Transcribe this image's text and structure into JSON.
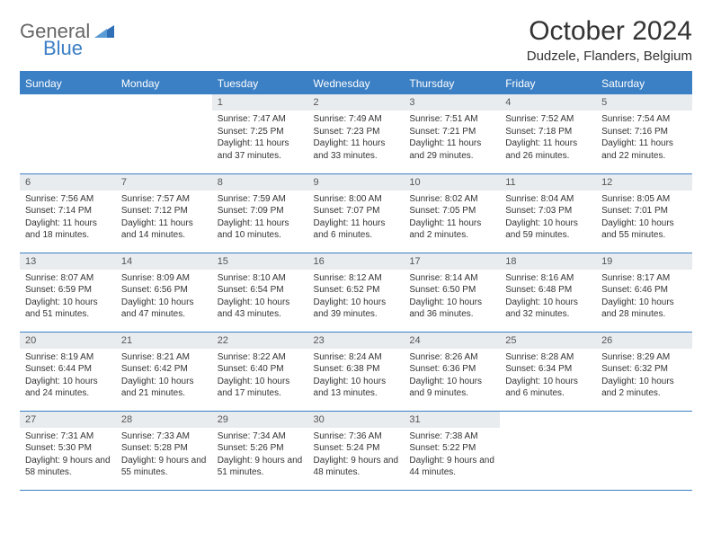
{
  "brand": {
    "line1": "General",
    "line2": "Blue"
  },
  "title": "October 2024",
  "location": "Dudzele, Flanders, Belgium",
  "colors": {
    "accent": "#3b7fc4",
    "header_bg": "#3b7fc4",
    "header_text": "#ffffff",
    "daynum_bg": "#e9ecef",
    "border": "#3b7fc4",
    "page_bg": "#ffffff",
    "text": "#333333"
  },
  "typography": {
    "title_fontsize": 30,
    "location_fontsize": 15,
    "dayheader_fontsize": 12,
    "daynum_fontsize": 11,
    "body_fontsize": 10
  },
  "day_headers": [
    "Sunday",
    "Monday",
    "Tuesday",
    "Wednesday",
    "Thursday",
    "Friday",
    "Saturday"
  ],
  "weeks": [
    [
      {
        "n": "",
        "sun": "",
        "set": "",
        "day": "",
        "empty": true
      },
      {
        "n": "",
        "sun": "",
        "set": "",
        "day": "",
        "empty": true
      },
      {
        "n": "1",
        "sun": "Sunrise: 7:47 AM",
        "set": "Sunset: 7:25 PM",
        "day": "Daylight: 11 hours and 37 minutes."
      },
      {
        "n": "2",
        "sun": "Sunrise: 7:49 AM",
        "set": "Sunset: 7:23 PM",
        "day": "Daylight: 11 hours and 33 minutes."
      },
      {
        "n": "3",
        "sun": "Sunrise: 7:51 AM",
        "set": "Sunset: 7:21 PM",
        "day": "Daylight: 11 hours and 29 minutes."
      },
      {
        "n": "4",
        "sun": "Sunrise: 7:52 AM",
        "set": "Sunset: 7:18 PM",
        "day": "Daylight: 11 hours and 26 minutes."
      },
      {
        "n": "5",
        "sun": "Sunrise: 7:54 AM",
        "set": "Sunset: 7:16 PM",
        "day": "Daylight: 11 hours and 22 minutes."
      }
    ],
    [
      {
        "n": "6",
        "sun": "Sunrise: 7:56 AM",
        "set": "Sunset: 7:14 PM",
        "day": "Daylight: 11 hours and 18 minutes."
      },
      {
        "n": "7",
        "sun": "Sunrise: 7:57 AM",
        "set": "Sunset: 7:12 PM",
        "day": "Daylight: 11 hours and 14 minutes."
      },
      {
        "n": "8",
        "sun": "Sunrise: 7:59 AM",
        "set": "Sunset: 7:09 PM",
        "day": "Daylight: 11 hours and 10 minutes."
      },
      {
        "n": "9",
        "sun": "Sunrise: 8:00 AM",
        "set": "Sunset: 7:07 PM",
        "day": "Daylight: 11 hours and 6 minutes."
      },
      {
        "n": "10",
        "sun": "Sunrise: 8:02 AM",
        "set": "Sunset: 7:05 PM",
        "day": "Daylight: 11 hours and 2 minutes."
      },
      {
        "n": "11",
        "sun": "Sunrise: 8:04 AM",
        "set": "Sunset: 7:03 PM",
        "day": "Daylight: 10 hours and 59 minutes."
      },
      {
        "n": "12",
        "sun": "Sunrise: 8:05 AM",
        "set": "Sunset: 7:01 PM",
        "day": "Daylight: 10 hours and 55 minutes."
      }
    ],
    [
      {
        "n": "13",
        "sun": "Sunrise: 8:07 AM",
        "set": "Sunset: 6:59 PM",
        "day": "Daylight: 10 hours and 51 minutes."
      },
      {
        "n": "14",
        "sun": "Sunrise: 8:09 AM",
        "set": "Sunset: 6:56 PM",
        "day": "Daylight: 10 hours and 47 minutes."
      },
      {
        "n": "15",
        "sun": "Sunrise: 8:10 AM",
        "set": "Sunset: 6:54 PM",
        "day": "Daylight: 10 hours and 43 minutes."
      },
      {
        "n": "16",
        "sun": "Sunrise: 8:12 AM",
        "set": "Sunset: 6:52 PM",
        "day": "Daylight: 10 hours and 39 minutes."
      },
      {
        "n": "17",
        "sun": "Sunrise: 8:14 AM",
        "set": "Sunset: 6:50 PM",
        "day": "Daylight: 10 hours and 36 minutes."
      },
      {
        "n": "18",
        "sun": "Sunrise: 8:16 AM",
        "set": "Sunset: 6:48 PM",
        "day": "Daylight: 10 hours and 32 minutes."
      },
      {
        "n": "19",
        "sun": "Sunrise: 8:17 AM",
        "set": "Sunset: 6:46 PM",
        "day": "Daylight: 10 hours and 28 minutes."
      }
    ],
    [
      {
        "n": "20",
        "sun": "Sunrise: 8:19 AM",
        "set": "Sunset: 6:44 PM",
        "day": "Daylight: 10 hours and 24 minutes."
      },
      {
        "n": "21",
        "sun": "Sunrise: 8:21 AM",
        "set": "Sunset: 6:42 PM",
        "day": "Daylight: 10 hours and 21 minutes."
      },
      {
        "n": "22",
        "sun": "Sunrise: 8:22 AM",
        "set": "Sunset: 6:40 PM",
        "day": "Daylight: 10 hours and 17 minutes."
      },
      {
        "n": "23",
        "sun": "Sunrise: 8:24 AM",
        "set": "Sunset: 6:38 PM",
        "day": "Daylight: 10 hours and 13 minutes."
      },
      {
        "n": "24",
        "sun": "Sunrise: 8:26 AM",
        "set": "Sunset: 6:36 PM",
        "day": "Daylight: 10 hours and 9 minutes."
      },
      {
        "n": "25",
        "sun": "Sunrise: 8:28 AM",
        "set": "Sunset: 6:34 PM",
        "day": "Daylight: 10 hours and 6 minutes."
      },
      {
        "n": "26",
        "sun": "Sunrise: 8:29 AM",
        "set": "Sunset: 6:32 PM",
        "day": "Daylight: 10 hours and 2 minutes."
      }
    ],
    [
      {
        "n": "27",
        "sun": "Sunrise: 7:31 AM",
        "set": "Sunset: 5:30 PM",
        "day": "Daylight: 9 hours and 58 minutes."
      },
      {
        "n": "28",
        "sun": "Sunrise: 7:33 AM",
        "set": "Sunset: 5:28 PM",
        "day": "Daylight: 9 hours and 55 minutes."
      },
      {
        "n": "29",
        "sun": "Sunrise: 7:34 AM",
        "set": "Sunset: 5:26 PM",
        "day": "Daylight: 9 hours and 51 minutes."
      },
      {
        "n": "30",
        "sun": "Sunrise: 7:36 AM",
        "set": "Sunset: 5:24 PM",
        "day": "Daylight: 9 hours and 48 minutes."
      },
      {
        "n": "31",
        "sun": "Sunrise: 7:38 AM",
        "set": "Sunset: 5:22 PM",
        "day": "Daylight: 9 hours and 44 minutes."
      },
      {
        "n": "",
        "sun": "",
        "set": "",
        "day": "",
        "empty": true
      },
      {
        "n": "",
        "sun": "",
        "set": "",
        "day": "",
        "empty": true
      }
    ]
  ]
}
